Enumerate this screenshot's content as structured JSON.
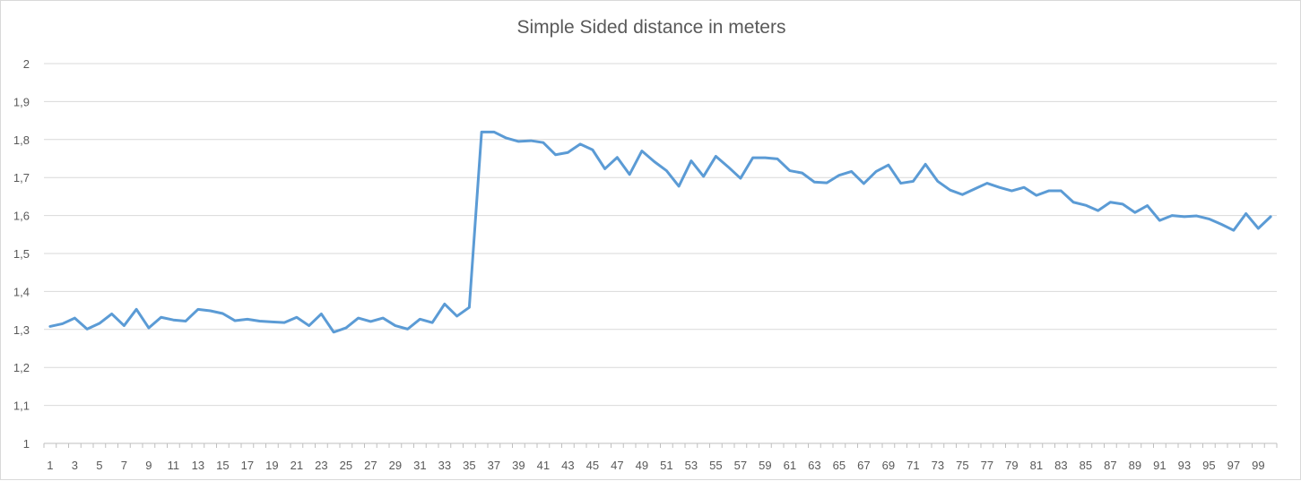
{
  "chart_data": {
    "type": "line",
    "title": "Simple Sided distance in meters",
    "xlabel": "",
    "ylabel": "",
    "ylim": [
      1,
      2
    ],
    "ytick_labels": [
      "1",
      "1,1",
      "1,2",
      "1,3",
      "1,4",
      "1,5",
      "1,6",
      "1,7",
      "1,8",
      "1,9",
      "2"
    ],
    "x": [
      1,
      2,
      3,
      4,
      5,
      6,
      7,
      8,
      9,
      10,
      11,
      12,
      13,
      14,
      15,
      16,
      17,
      18,
      19,
      20,
      21,
      22,
      23,
      24,
      25,
      26,
      27,
      28,
      29,
      30,
      31,
      32,
      33,
      34,
      35,
      36,
      37,
      38,
      39,
      40,
      41,
      42,
      43,
      44,
      45,
      46,
      47,
      48,
      49,
      50,
      51,
      52,
      53,
      54,
      55,
      56,
      57,
      58,
      59,
      60,
      61,
      62,
      63,
      64,
      65,
      66,
      67,
      68,
      69,
      70,
      71,
      72,
      73,
      74,
      75,
      76,
      77,
      78,
      79,
      80,
      81,
      82,
      83,
      84,
      85,
      86,
      87,
      88,
      89,
      90,
      91,
      92,
      93,
      94,
      95,
      96,
      97,
      98,
      99,
      100
    ],
    "xtick_labels": [
      "1",
      "3",
      "5",
      "7",
      "9",
      "11",
      "13",
      "15",
      "17",
      "19",
      "21",
      "23",
      "25",
      "27",
      "29",
      "31",
      "33",
      "35",
      "37",
      "39",
      "41",
      "43",
      "45",
      "47",
      "49",
      "51",
      "53",
      "55",
      "57",
      "59",
      "61",
      "63",
      "65",
      "67",
      "69",
      "71",
      "73",
      "75",
      "77",
      "79",
      "81",
      "83",
      "85",
      "87",
      "89",
      "91",
      "93",
      "95",
      "97",
      "99"
    ],
    "series": [
      {
        "color": "#5b9bd5",
        "values": [
          1.308,
          1.315,
          1.33,
          1.301,
          1.316,
          1.341,
          1.31,
          1.353,
          1.304,
          1.332,
          1.325,
          1.322,
          1.353,
          1.349,
          1.342,
          1.323,
          1.327,
          1.322,
          1.32,
          1.318,
          1.332,
          1.31,
          1.341,
          1.293,
          1.304,
          1.33,
          1.321,
          1.33,
          1.31,
          1.301,
          1.327,
          1.318,
          1.367,
          1.335,
          1.358,
          1.82,
          1.82,
          1.804,
          1.795,
          1.797,
          1.792,
          1.76,
          1.766,
          1.788,
          1.773,
          1.723,
          1.753,
          1.708,
          1.77,
          1.742,
          1.718,
          1.677,
          1.744,
          1.703,
          1.756,
          1.728,
          1.698,
          1.752,
          1.752,
          1.749,
          1.718,
          1.712,
          1.688,
          1.686,
          1.706,
          1.716,
          1.684,
          1.716,
          1.733,
          1.685,
          1.69,
          1.735,
          1.69,
          1.667,
          1.655,
          1.67,
          1.685,
          1.674,
          1.665,
          1.674,
          1.653,
          1.665,
          1.665,
          1.635,
          1.627,
          1.613,
          1.635,
          1.63,
          1.608,
          1.626,
          1.587,
          1.6,
          1.597,
          1.599,
          1.591,
          1.577,
          1.561,
          1.605,
          1.566,
          1.597
        ]
      }
    ],
    "grid": true,
    "legend": "none"
  }
}
